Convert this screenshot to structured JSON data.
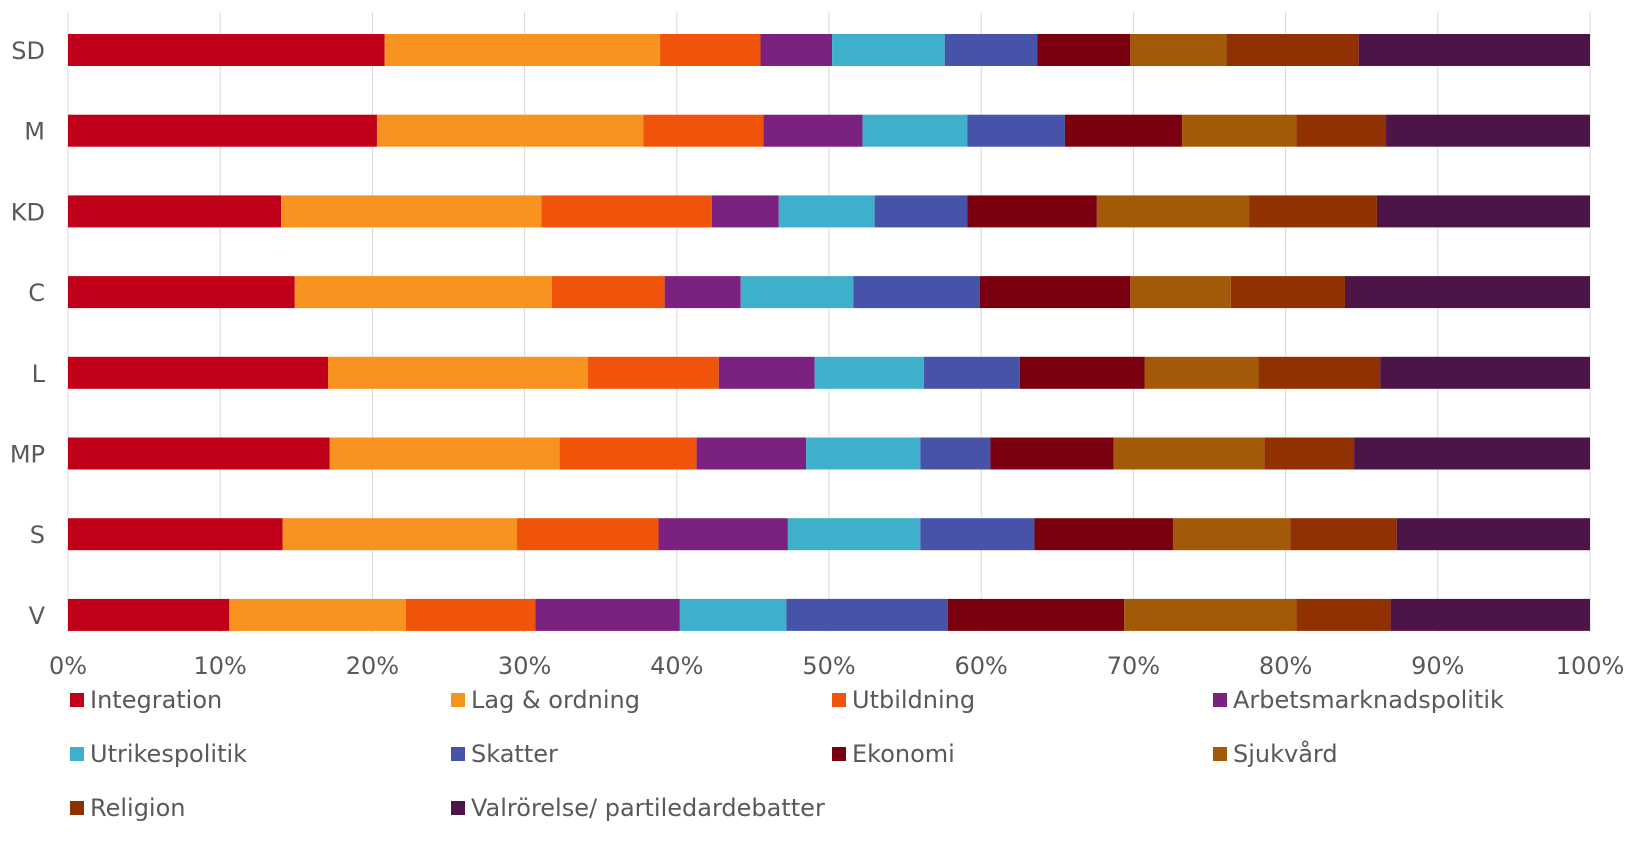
{
  "chart_data": {
    "type": "bar",
    "orientation": "horizontal",
    "stacked": "percent",
    "categories": [
      "SD",
      "M",
      "KD",
      "C",
      "L",
      "MP",
      "S",
      "V"
    ],
    "xlim": [
      0,
      100
    ],
    "x_ticks": [
      "0%",
      "10%",
      "20%",
      "30%",
      "40%",
      "50%",
      "60%",
      "70%",
      "80%",
      "90%",
      "100%"
    ],
    "grid": "vertical",
    "legend_position": "bottom",
    "series": [
      {
        "name": "Integration",
        "color": "#c00018",
        "values": [
          20.8,
          20.3,
          14.0,
          14.9,
          17.1,
          17.2,
          14.1,
          10.6
        ]
      },
      {
        "name": "Lag & ordning",
        "color": "#f7931e",
        "values": [
          18.1,
          17.5,
          17.1,
          16.9,
          17.1,
          15.1,
          15.4,
          11.6
        ]
      },
      {
        "name": "Utbildning",
        "color": "#f0530a",
        "values": [
          6.6,
          7.9,
          11.2,
          7.4,
          8.6,
          9.0,
          9.3,
          8.5
        ]
      },
      {
        "name": "Arbetsmarknadspolitik",
        "color": "#7b2180",
        "values": [
          4.7,
          6.5,
          4.4,
          5.0,
          6.3,
          7.2,
          8.5,
          9.5
        ]
      },
      {
        "name": "Utrikespolitik",
        "color": "#3fb0cc",
        "values": [
          7.4,
          6.9,
          6.3,
          7.4,
          7.2,
          7.5,
          8.7,
          7.0
        ]
      },
      {
        "name": "Skatter",
        "color": "#4653a8",
        "values": [
          6.1,
          6.4,
          6.1,
          8.3,
          6.3,
          4.6,
          7.5,
          10.6
        ]
      },
      {
        "name": "Ekonomi",
        "color": "#7a0010",
        "values": [
          6.1,
          7.7,
          8.5,
          9.9,
          8.2,
          8.1,
          9.1,
          11.6
        ]
      },
      {
        "name": "Sjukvård",
        "color": "#a35a08",
        "values": [
          6.3,
          7.5,
          10.0,
          6.6,
          7.5,
          9.9,
          7.7,
          11.3
        ]
      },
      {
        "name": "Religion",
        "color": "#913000",
        "values": [
          8.7,
          5.9,
          8.4,
          7.5,
          8.0,
          5.9,
          7.0,
          6.2
        ]
      },
      {
        "name": "Valrörelse/ partiledardebatter",
        "color": "#4d1448",
        "values": [
          15.2,
          13.4,
          14.0,
          16.1,
          13.8,
          15.5,
          12.7,
          13.1
        ]
      }
    ]
  }
}
